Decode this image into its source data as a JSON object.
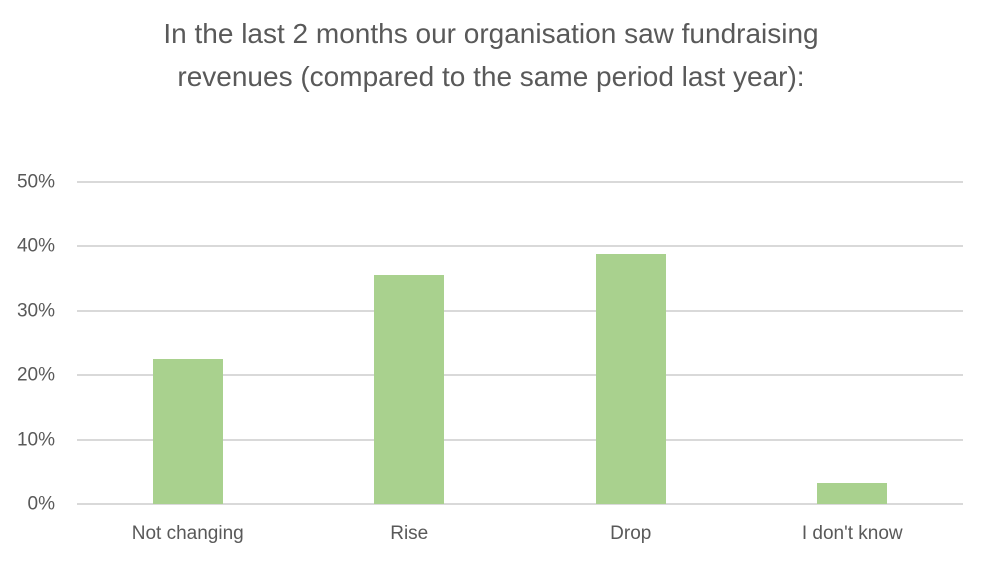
{
  "chart_data": {
    "type": "bar",
    "title": "In the last 2 months our organisation saw fundraising revenues (compared to the same period last year):",
    "categories": [
      "Not changing",
      "Rise",
      "Drop",
      "I don't know"
    ],
    "values": [
      22.5,
      35.5,
      38.8,
      3.2
    ],
    "value_unit": "%",
    "xlabel": "",
    "ylabel": "",
    "ylim": [
      0,
      50
    ],
    "yticks": [
      0,
      10,
      20,
      30,
      40,
      50
    ],
    "ytick_labels": [
      "0%",
      "10%",
      "20%",
      "30%",
      "40%",
      "50%"
    ],
    "grid": "horizontal",
    "legend": "none",
    "colors": {
      "bar": "#a9d18e",
      "gridline": "#d9d9d9",
      "text": "#595959",
      "background": "#ffffff"
    }
  }
}
